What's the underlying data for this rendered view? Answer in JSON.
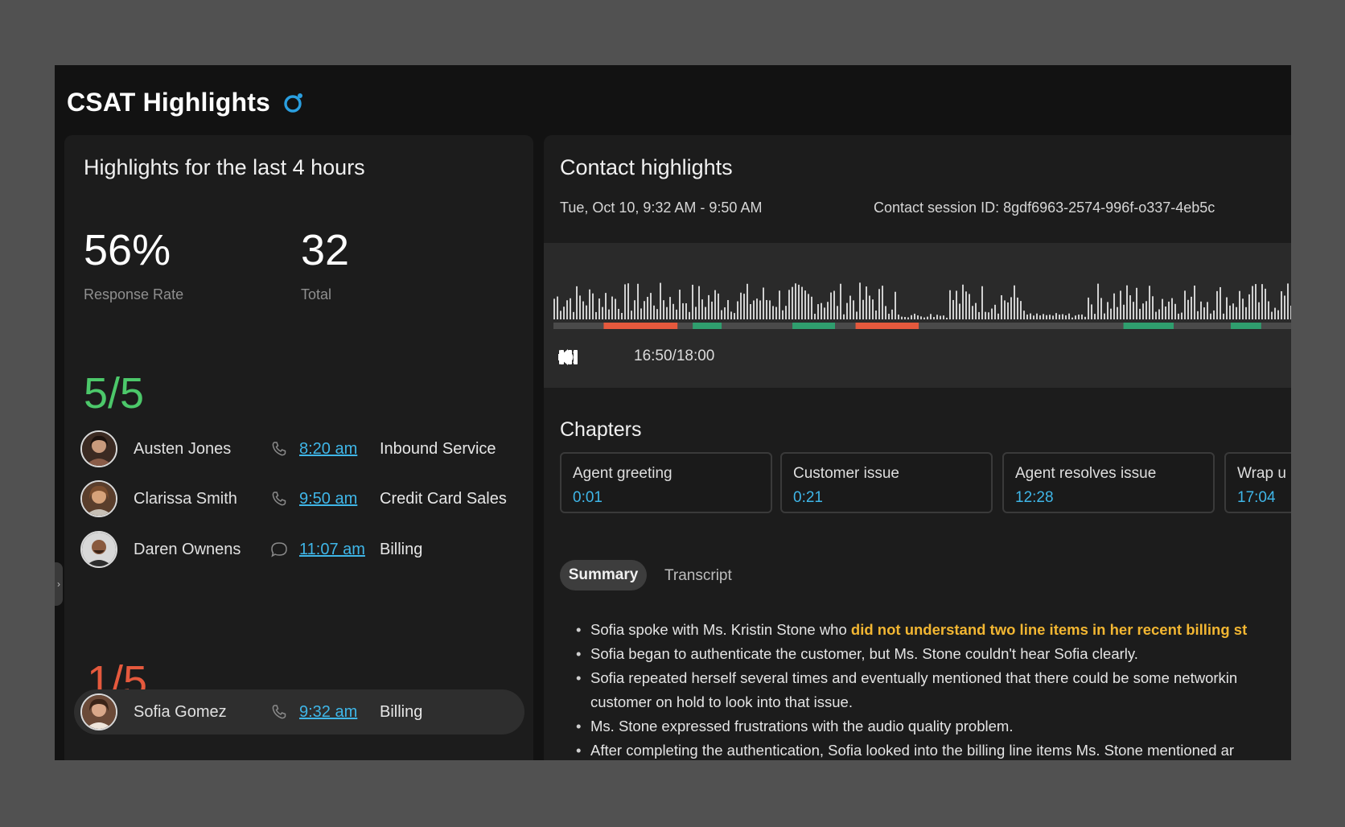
{
  "app": {
    "title": "CSAT Highlights",
    "ai_icon": "ai-sparkle-icon"
  },
  "left": {
    "title": "Highlights for the last 4 hours",
    "stats": [
      {
        "value": "56%",
        "label": "Response Rate"
      },
      {
        "value": "32",
        "label": "Total"
      }
    ],
    "good_score": "5/5",
    "good_agents": [
      {
        "name": "Austen Jones",
        "channel": "phone-icon",
        "time": "8:20 am",
        "queue": "Inbound Service"
      },
      {
        "name": "Clarissa Smith",
        "channel": "phone-icon",
        "time": "9:50 am",
        "queue": "Credit Card Sales"
      },
      {
        "name": "Daren Ownens",
        "channel": "chat-icon",
        "time": "11:07 am",
        "queue": "Billing"
      }
    ],
    "bad_score": "1/5",
    "bad_agents": [
      {
        "name": "Sofia Gomez",
        "channel": "phone-icon",
        "time": "9:32 am",
        "queue": "Billing"
      }
    ],
    "colors": {
      "good": "#4cc86a",
      "bad": "#e5593d",
      "link": "#3fb6e8"
    }
  },
  "right": {
    "title": "Contact highlights",
    "session_time": "Tue, Oct 10, 9:32 AM - 9:50 AM",
    "session_id": "Contact session ID: 8gdf6963-2574-996f-o337-4eb5c",
    "player": {
      "timecode": "16:50/18:00",
      "progress_fraction": 0.935,
      "segments_red": [
        [
          0.066,
          0.163
        ],
        [
          0.397,
          0.48
        ]
      ],
      "segments_green": [
        [
          0.183,
          0.221
        ],
        [
          0.314,
          0.37
        ],
        [
          0.749,
          0.815
        ],
        [
          0.89,
          0.93
        ]
      ]
    },
    "chapters_title": "Chapters",
    "chapters": [
      {
        "name": "Agent greeting",
        "time": "0:01"
      },
      {
        "name": "Customer issue",
        "time": "0:21"
      },
      {
        "name": "Agent resolves issue",
        "time": "12:28"
      },
      {
        "name": "Wrap u",
        "time": "17:04"
      }
    ],
    "tabs": {
      "summary": "Summary",
      "transcript": "Transcript"
    },
    "summary": {
      "line1_pre": "Sofia spoke with Ms. Kristin Stone who ",
      "line1_hl": "did not understand two line items in her recent billing st",
      "line2": "Sofia began to authenticate the customer, but Ms. Stone couldn't hear Sofia clearly.",
      "line3a": "Sofia repeated herself several times and eventually mentioned that there could be some networkin",
      "line3b": "customer on hold to look into that issue.",
      "line4": "Ms. Stone expressed frustrations with the audio quality problem.",
      "line5": "After completing the authentication, Sofia looked into the billing line items Ms. Stone mentioned ar"
    }
  }
}
